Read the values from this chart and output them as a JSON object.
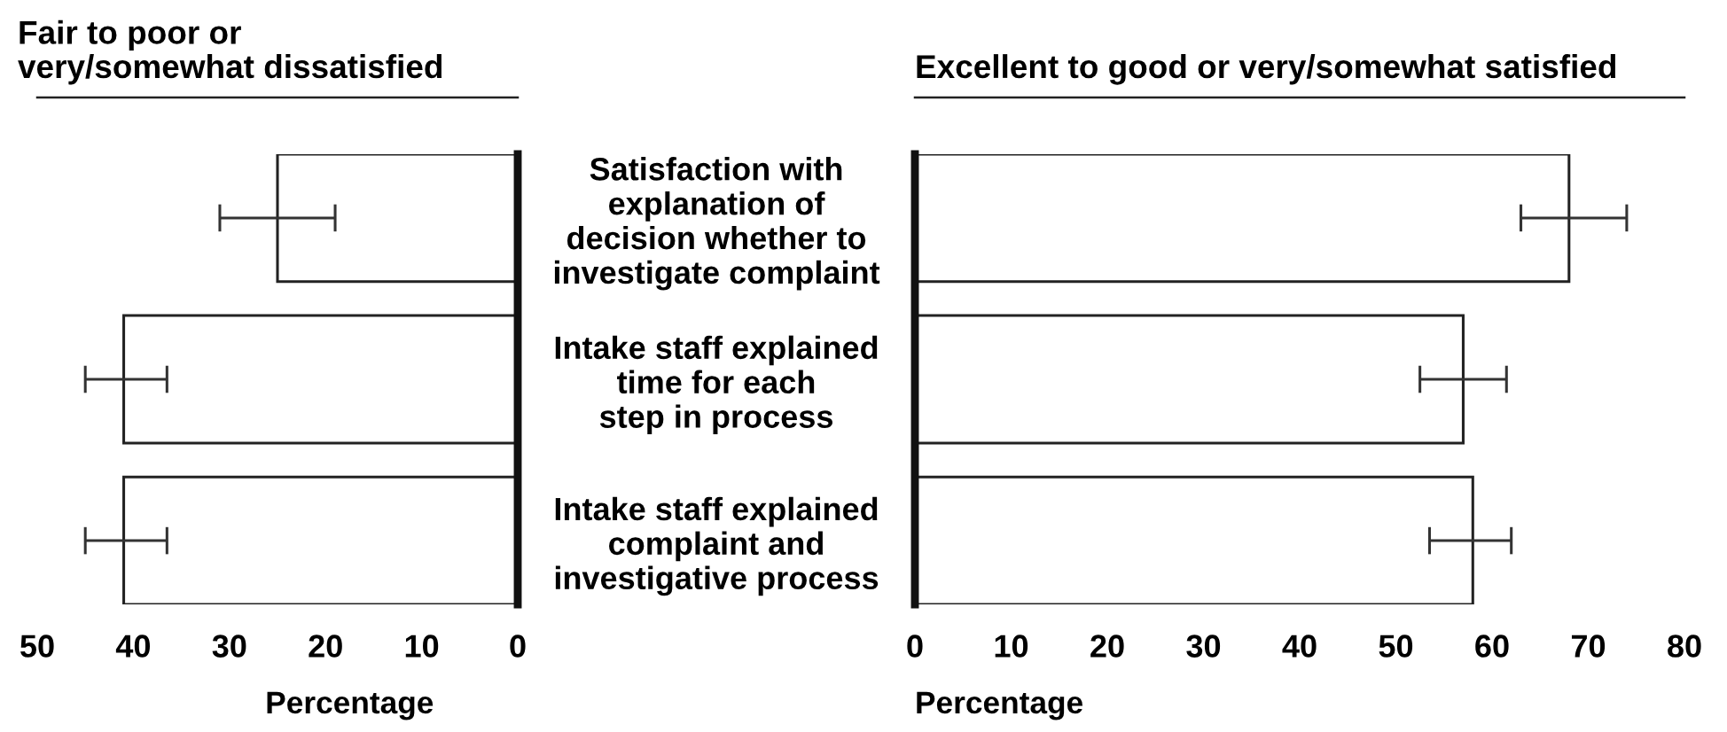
{
  "chart_data": [
    {
      "type": "bar",
      "orientation": "horizontal",
      "title": "Fair to poor or\nvery/somewhat dissatisfied",
      "xlabel": "Percentage",
      "categories": [
        null,
        null,
        null
      ],
      "values": [
        25,
        41,
        41
      ],
      "errors": [
        [
          19,
          31
        ],
        [
          36.5,
          45
        ],
        [
          36.5,
          45
        ]
      ],
      "color": "#ffffff",
      "xlim": [
        50,
        0
      ],
      "xticks": [
        50,
        40,
        30,
        20,
        10,
        0
      ]
    },
    {
      "type": "bar",
      "orientation": "horizontal",
      "title": "Excellent to good or very/somewhat satisfied",
      "xlabel": "Percentage",
      "categories": [
        "Satisfaction with\nexplanation of\ndecision whether to\ninvestigate complaint",
        "Intake staff explained\ntime for each\nstep in process",
        "Intake staff explained\ncomplaint and\ninvestigative process"
      ],
      "values": [
        68,
        57,
        58
      ],
      "errors": [
        [
          63,
          74
        ],
        [
          52.5,
          61.5
        ],
        [
          53.5,
          62
        ]
      ],
      "color": "#ffffff",
      "xlim": [
        0,
        80
      ],
      "xticks": [
        0,
        10,
        20,
        30,
        40,
        50,
        60,
        70,
        80
      ]
    }
  ]
}
